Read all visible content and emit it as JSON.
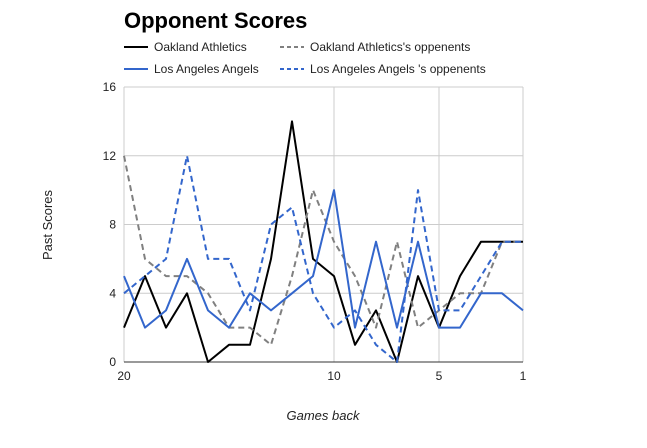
{
  "chart_data": {
    "type": "line",
    "title": "Opponent Scores",
    "xlabel": "Games back",
    "ylabel": "Past Scores",
    "x": [
      20,
      19,
      18,
      17,
      16,
      15,
      14,
      13,
      12,
      11,
      10,
      9,
      8,
      7,
      6,
      5,
      4,
      3,
      2,
      1
    ],
    "x_reversed": true,
    "xlim": [
      20,
      1
    ],
    "ylim": [
      0,
      16
    ],
    "yticks": [
      "0",
      "4",
      "8",
      "12",
      "16"
    ],
    "xticks": [
      {
        "value": 20,
        "label": "20"
      },
      {
        "value": 10,
        "label": "10"
      },
      {
        "value": 5,
        "label": "5"
      },
      {
        "value": 1,
        "label": "1"
      }
    ],
    "grid": true,
    "legend_position": "top",
    "series": [
      {
        "name": "Oakland Athletics",
        "color": "#000000",
        "style": "solid",
        "values": [
          2,
          5,
          2,
          4,
          0,
          1,
          1,
          6,
          14,
          6,
          5,
          1,
          3,
          0,
          5,
          2,
          5,
          7,
          7,
          7
        ]
      },
      {
        "name": "Oakland Athletics's oppenents",
        "color": "#808080",
        "style": "dashed",
        "values": [
          12,
          6,
          5,
          5,
          4,
          2,
          2,
          1,
          5,
          10,
          7,
          5,
          2,
          7,
          2,
          3,
          4,
          4,
          7,
          7
        ]
      },
      {
        "name": "Los Angeles Angels",
        "color": "#3366cc",
        "style": "solid",
        "values": [
          5,
          2,
          3,
          6,
          3,
          2,
          4,
          3,
          4,
          5,
          10,
          2,
          7,
          2,
          7,
          2,
          2,
          4,
          4,
          3
        ]
      },
      {
        "name": "Los Angeles Angels 's oppenents",
        "color": "#3366cc",
        "style": "dashed",
        "values": [
          4,
          5,
          6,
          12,
          6,
          6,
          3,
          8,
          9,
          4,
          2,
          3,
          1,
          0,
          10,
          3,
          3,
          5,
          7,
          7
        ]
      }
    ]
  }
}
